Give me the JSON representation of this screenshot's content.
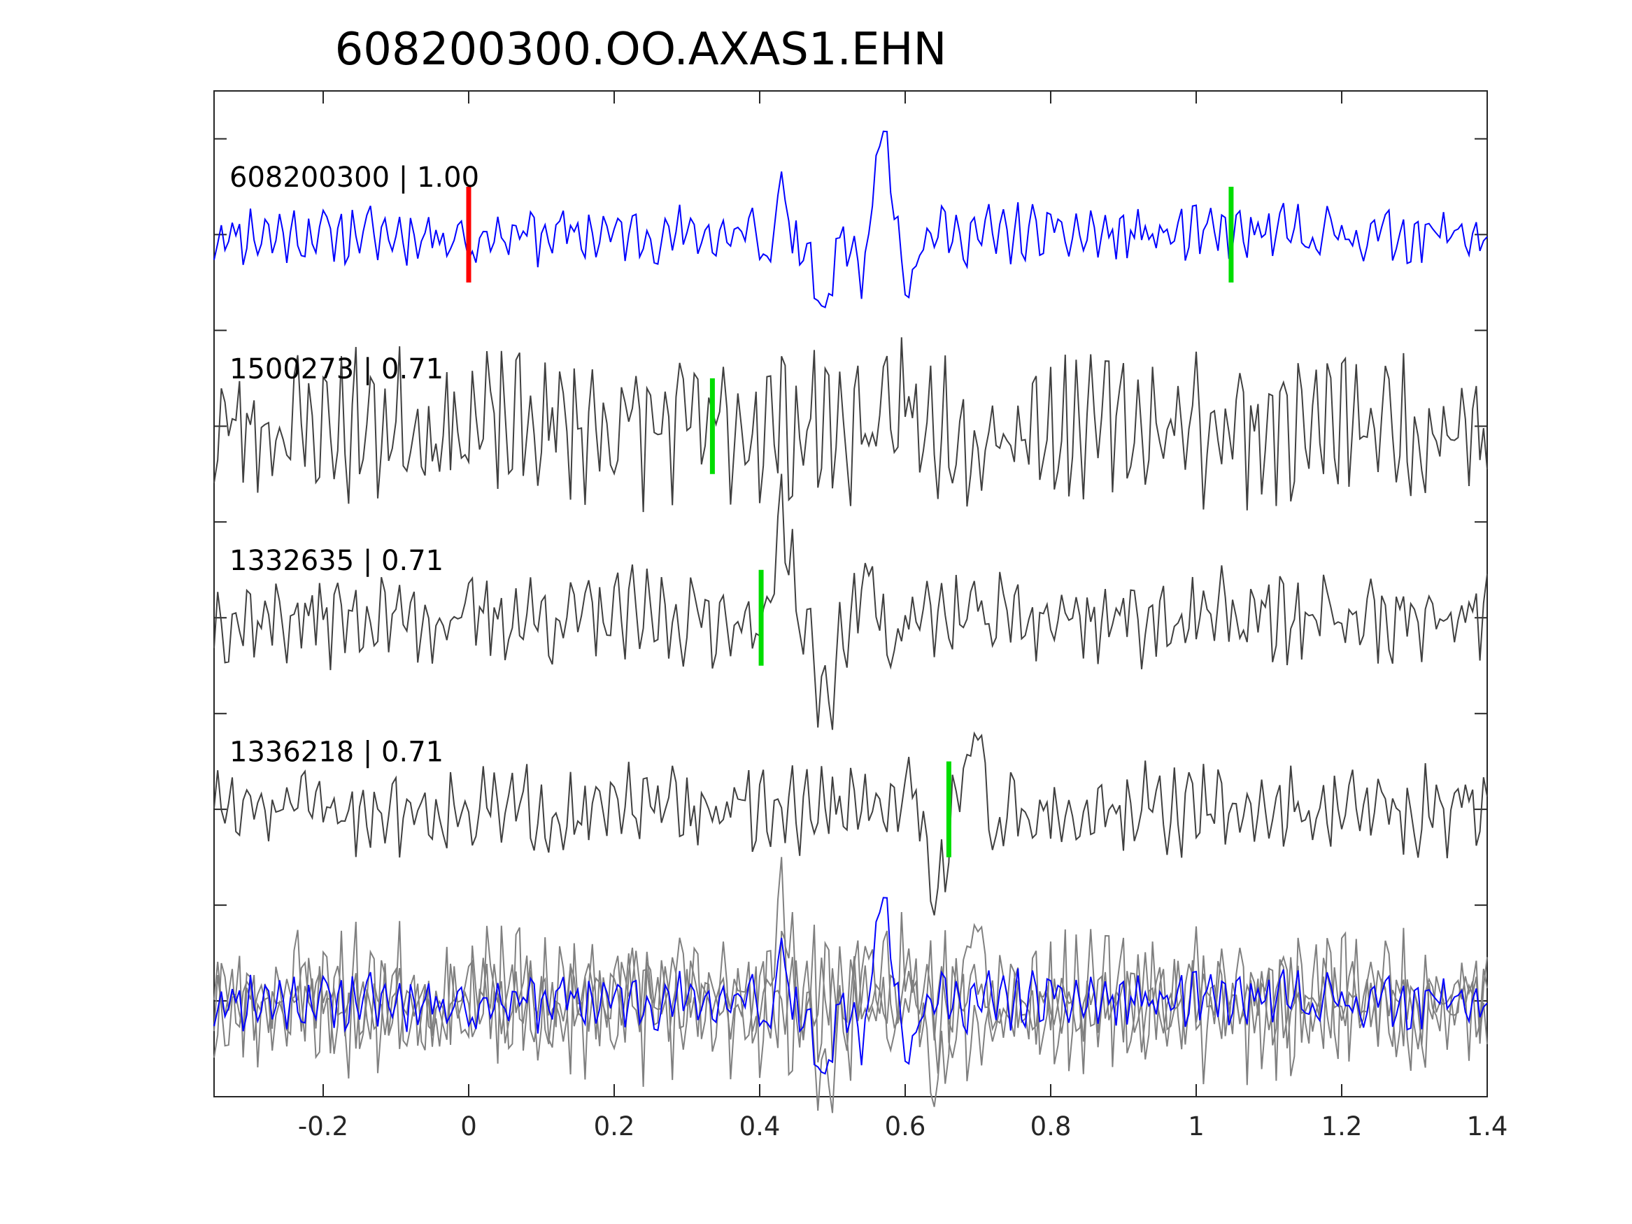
{
  "chart_data": {
    "type": "line",
    "title": "608200300.OO.AXAS1.EHN",
    "xlim": [
      -0.35,
      1.4
    ],
    "xticks": [
      -0.2,
      0,
      0.2,
      0.4,
      0.6,
      0.8,
      1,
      1.2,
      1.4
    ],
    "xtick_labels": [
      "-0.2",
      "0",
      "0.2",
      "0.4",
      "0.6",
      "0.8",
      "1",
      "1.2",
      "1.4"
    ],
    "xlabel": "",
    "ylabel": "",
    "grid": false,
    "legend": "none",
    "traces": [
      {
        "id": "608200300",
        "label": "608200300 | 1.00",
        "offset": 4,
        "color": "#0000ff",
        "markers": [
          {
            "x": 0.0,
            "color": "#ff0000"
          },
          {
            "x": 1.048,
            "color": "#00dd00"
          }
        ],
        "events": [
          {
            "t": 0.005,
            "a": -0.35,
            "f": 32,
            "w": 0.012
          },
          {
            "t": 0.43,
            "a": 0.45,
            "f": 20,
            "w": 0.04
          },
          {
            "t": 0.485,
            "a": -0.9,
            "f": 10,
            "w": 0.03
          },
          {
            "t": 0.57,
            "a": 1.1,
            "f": 12,
            "w": 0.04
          }
        ],
        "noise": 0.18,
        "seed": 11
      },
      {
        "id": "1500273",
        "label": "1500273 | 0.71",
        "offset": 2,
        "color": "#404040",
        "markers": [
          {
            "x": 0.335,
            "color": "#00dd00"
          }
        ],
        "events": [
          {
            "t": 0.6,
            "a": 0.6,
            "f": 25,
            "w": 0.02
          }
        ],
        "noise": 0.45,
        "seed": 23
      },
      {
        "id": "1332635",
        "label": "1332635 | 0.71",
        "offset": 0,
        "color": "#404040",
        "markers": [
          {
            "x": 0.402,
            "color": "#00dd00"
          }
        ],
        "events": [
          {
            "t": 0.43,
            "a": 1.1,
            "f": 12,
            "w": 0.03
          },
          {
            "t": 0.49,
            "a": -0.9,
            "f": 10,
            "w": 0.03
          },
          {
            "t": 0.55,
            "a": 0.35,
            "f": 15,
            "w": 0.04
          }
        ],
        "noise": 0.28,
        "seed": 37
      },
      {
        "id": "1336218",
        "label": "1336218 | 0.71",
        "offset": -2,
        "color": "#404040",
        "markers": [
          {
            "x": 0.66,
            "color": "#00dd00"
          }
        ],
        "events": [
          {
            "t": 0.64,
            "a": -0.9,
            "f": 12,
            "w": 0.03
          },
          {
            "t": 0.695,
            "a": 0.75,
            "f": 12,
            "w": 0.03
          }
        ],
        "noise": 0.26,
        "seed": 51
      }
    ],
    "overlay": {
      "offset": -4,
      "colors": [
        "#808080",
        "#0000ff"
      ]
    }
  }
}
